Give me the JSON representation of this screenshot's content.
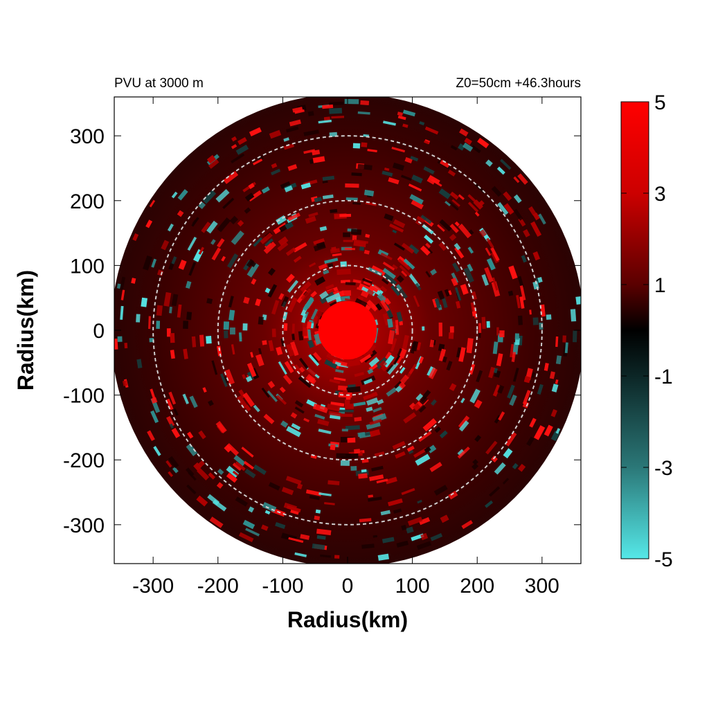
{
  "chart_data": {
    "type": "heatmap",
    "title_left": "PVU at  3000 m",
    "title_right": "Z0=50cm  +46.3hours",
    "xlabel": "Radius(km)",
    "ylabel": "Radius(km)",
    "xlim": [
      -360,
      360
    ],
    "ylim": [
      -360,
      360
    ],
    "x_ticks": [
      -300,
      -200,
      -100,
      0,
      100,
      200,
      300
    ],
    "x_tick_labels": [
      "-300",
      "-200",
      "-100",
      "0",
      "100",
      "200",
      "300"
    ],
    "y_ticks": [
      300,
      200,
      100,
      0,
      -100,
      -200,
      -300
    ],
    "y_tick_labels": [
      "300",
      "200",
      "100",
      "0",
      "-100",
      "-200",
      "-300"
    ],
    "data_radius_km": 365,
    "reference_circles_km": [
      100,
      200,
      300
    ],
    "colorbar": {
      "range": [
        -5,
        5
      ],
      "ticks": [
        5,
        3,
        1,
        -1,
        -3,
        -5
      ],
      "tick_labels": [
        "5",
        "3",
        "1",
        "-1",
        "-3",
        "-5"
      ],
      "colors": {
        "max": "#ff0000",
        "mid": "#000000",
        "min": "#55e8e8"
      }
    },
    "field_description": {
      "core_radius_km": 45,
      "core_value": 5,
      "ring_pattern": "alternating positive and negative potential vorticity patches"
    }
  }
}
